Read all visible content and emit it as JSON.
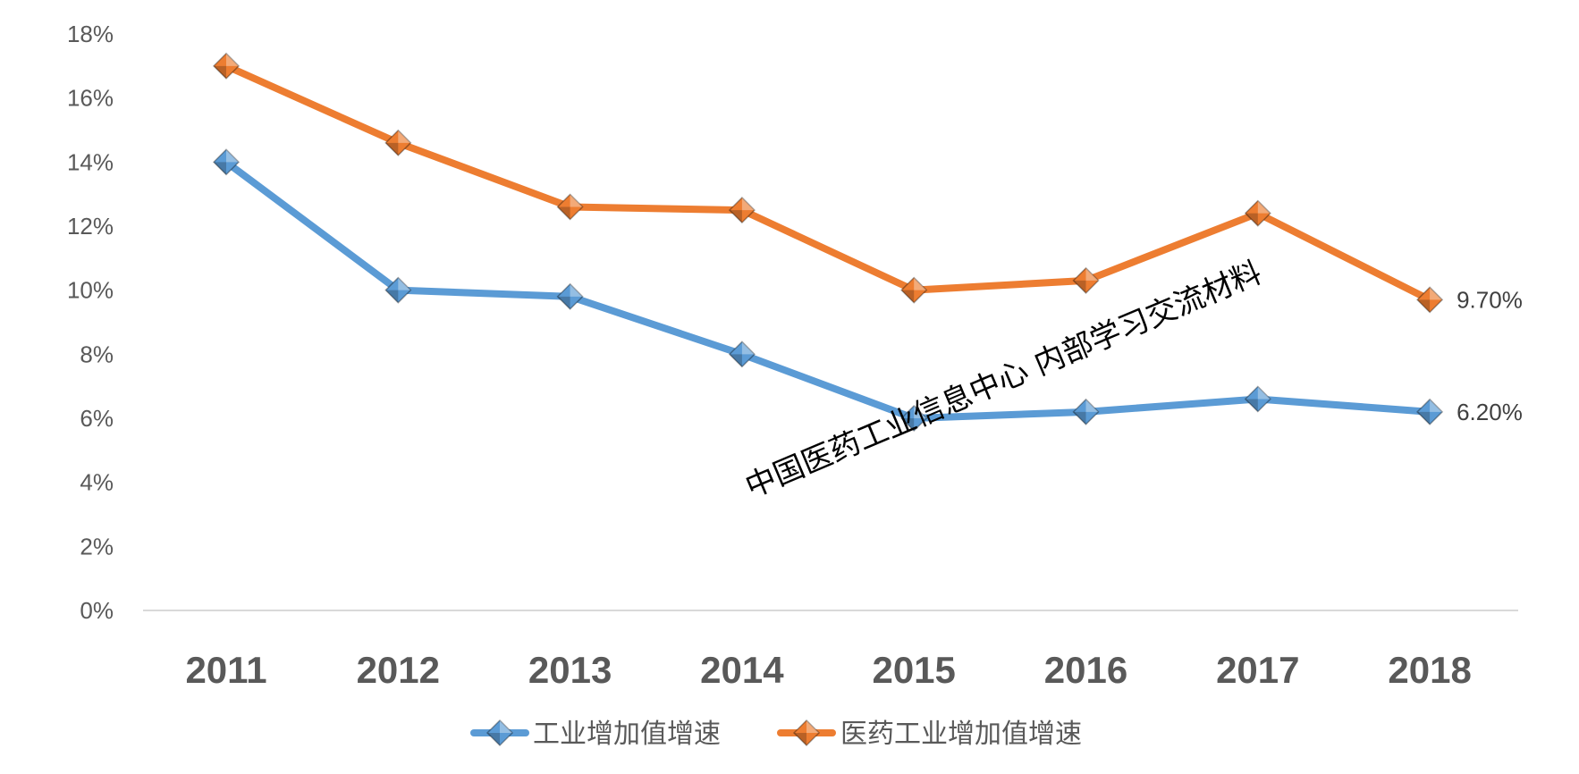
{
  "chart_data": {
    "type": "line",
    "categories": [
      "2011",
      "2012",
      "2013",
      "2014",
      "2015",
      "2016",
      "2017",
      "2018"
    ],
    "series": [
      {
        "name": "工业增加值增速",
        "color": "#5B9BD5",
        "values": [
          14.0,
          10.0,
          9.8,
          8.0,
          6.0,
          6.2,
          6.6,
          6.2
        ],
        "end_label": "6.20%"
      },
      {
        "name": "医药工业增加值增速",
        "color": "#ED7D31",
        "values": [
          17.0,
          14.6,
          12.6,
          12.5,
          10.0,
          10.3,
          12.4,
          9.7
        ],
        "end_label": "9.70%"
      }
    ],
    "yticks": [
      "0%",
      "2%",
      "4%",
      "6%",
      "8%",
      "10%",
      "12%",
      "14%",
      "16%",
      "18%"
    ],
    "ylim": [
      0,
      18
    ],
    "xlabel": "",
    "ylabel": "",
    "grid": false,
    "legend_position": "bottom",
    "annotation": "中国医药工业信息中心 内部学习交流材料"
  }
}
